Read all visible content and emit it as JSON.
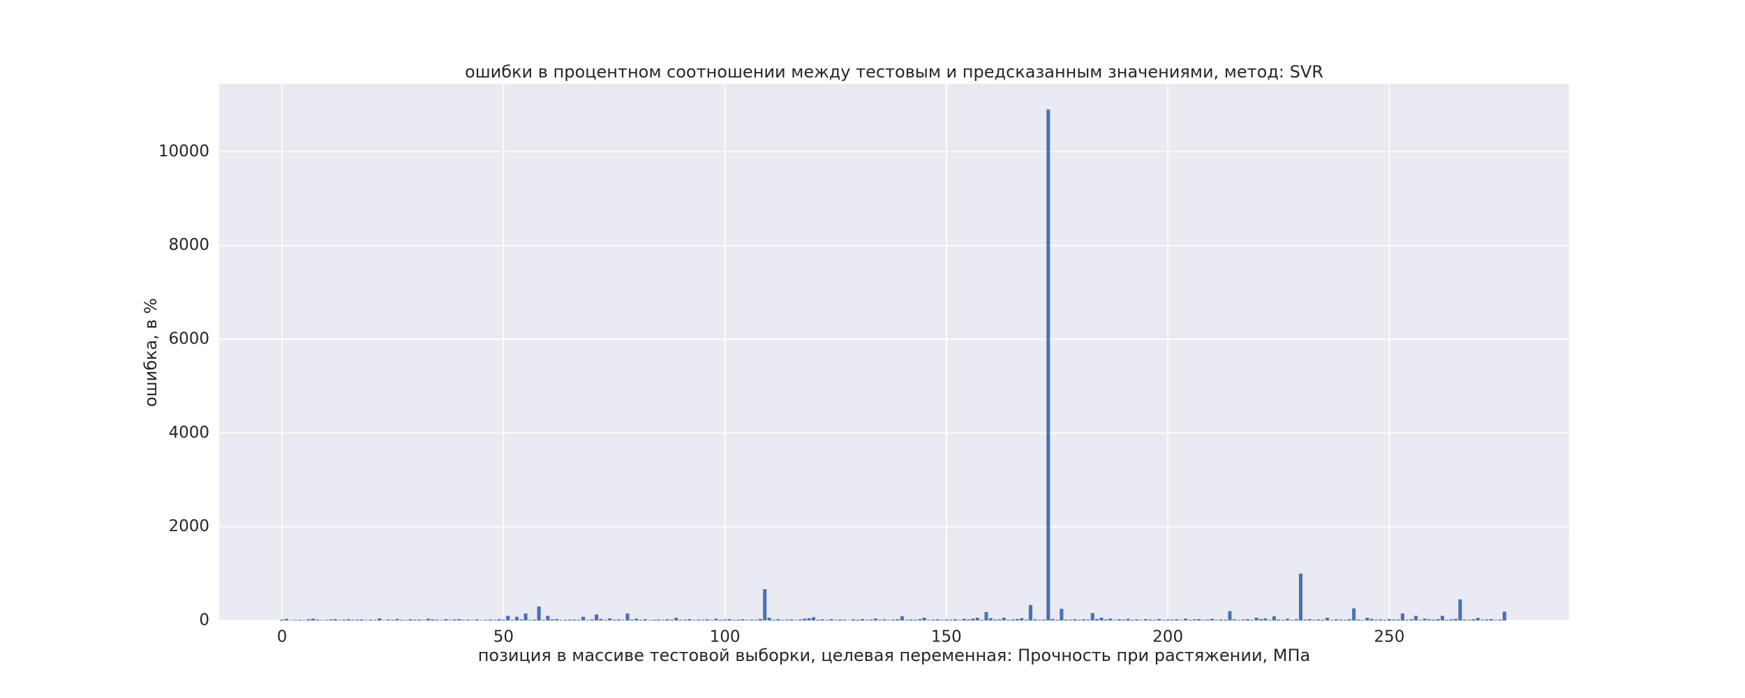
{
  "chart_data": {
    "type": "bar",
    "title": "ошибки в процентном соотношении между тестовым и предсказанным значениями, метод: SVR",
    "xlabel": "позиция в массиве тестовой выборки, целевая переменная: Прочность при растяжении, МПа",
    "ylabel": "ошибка, в %",
    "color": "#4c72b0",
    "bar_width": 0.8,
    "grid": true,
    "xlim": [
      -14.2,
      290.6
    ],
    "ylim": [
      0,
      11450
    ],
    "xticks": [
      0,
      50,
      100,
      150,
      200,
      250
    ],
    "yticks": [
      0,
      2000,
      4000,
      6000,
      8000,
      10000
    ],
    "values": [
      20,
      35,
      8,
      12,
      15,
      10,
      25,
      40,
      18,
      9,
      14,
      22,
      30,
      11,
      16,
      28,
      13,
      19,
      24,
      10,
      17,
      12,
      45,
      9,
      21,
      15,
      33,
      14,
      11,
      26,
      18,
      20,
      12,
      38,
      25,
      16,
      10,
      29,
      13,
      22,
      30,
      14,
      18,
      11,
      25,
      9,
      16,
      20,
      13,
      27,
      19,
      100,
      15,
      80,
      22,
      150,
      12,
      18,
      300,
      14,
      100,
      25,
      30,
      11,
      16,
      20,
      19,
      14,
      80,
      12,
      22,
      130,
      35,
      15,
      45,
      18,
      24,
      12,
      150,
      20,
      40,
      15,
      28,
      10,
      18,
      22,
      13,
      26,
      17,
      60,
      14,
      19,
      31,
      12,
      20,
      16,
      25,
      11,
      38,
      15,
      22,
      30,
      14,
      18,
      26,
      12,
      20,
      15,
      35,
      670,
      60,
      16,
      28,
      13,
      19,
      24,
      11,
      22,
      40,
      50,
      70,
      17,
      25,
      12,
      30,
      14,
      20,
      18,
      9,
      26,
      15,
      32,
      13,
      21,
      42,
      16,
      24,
      11,
      19,
      27,
      90,
      14,
      22,
      16,
      30,
      60,
      12,
      18,
      25,
      13,
      20,
      17,
      28,
      11,
      35,
      23,
      40,
      60,
      15,
      180,
      50,
      19,
      24,
      60,
      13,
      22,
      30,
      50,
      18,
      330,
      26,
      14,
      20,
      10900,
      32,
      15,
      250,
      21,
      17,
      28,
      14,
      25,
      19,
      160,
      30,
      60,
      22,
      40,
      13,
      27,
      18,
      35,
      15,
      24,
      12,
      29,
      20,
      16,
      33,
      14,
      22,
      18,
      27,
      12,
      40,
      15,
      25,
      30,
      14,
      20,
      36,
      13,
      22,
      17,
      200,
      26,
      11,
      19,
      28,
      15,
      60,
      30,
      45,
      14,
      90,
      21,
      16,
      38,
      12,
      25,
      1000,
      18,
      30,
      14,
      22,
      17,
      60,
      13,
      26,
      19,
      15,
      28,
      260,
      20,
      12,
      60,
      35,
      17,
      24,
      14,
      30,
      19,
      22,
      150,
      16,
      27,
      100,
      13,
      40,
      25,
      18,
      29,
      100,
      15,
      23,
      36,
      450,
      20,
      14,
      26,
      55,
      17,
      22,
      31,
      12,
      19,
      190
    ]
  }
}
